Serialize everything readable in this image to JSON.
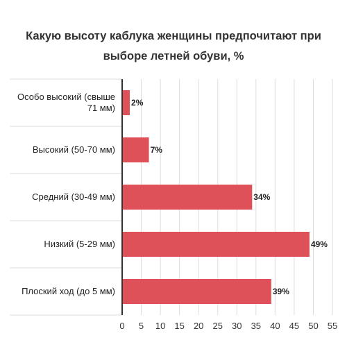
{
  "chart_data": {
    "type": "bar",
    "orientation": "horizontal",
    "title_lines": [
      "Какую высоту каблука женщины предпочитают при",
      "выборе летней обуви, %"
    ],
    "categories": [
      [
        "Особо высокий (свыше",
        "71 мм)"
      ],
      [
        "Высокий (50-70 мм)"
      ],
      [
        "Средний (30-49 мм)"
      ],
      [
        "Низкий (5-29 мм)"
      ],
      [
        "Плоский ход (до 5 мм)"
      ]
    ],
    "values": [
      2,
      7,
      34,
      49,
      39
    ],
    "value_labels": [
      "2%",
      "7%",
      "34%",
      "49%",
      "39%"
    ],
    "xlim": [
      0,
      55
    ],
    "xticks": [
      "0",
      "5",
      "10",
      "15",
      "20",
      "25",
      "30",
      "35",
      "40",
      "45",
      "50",
      "55"
    ],
    "grid": "vertical",
    "bar_color": "#de5158"
  }
}
